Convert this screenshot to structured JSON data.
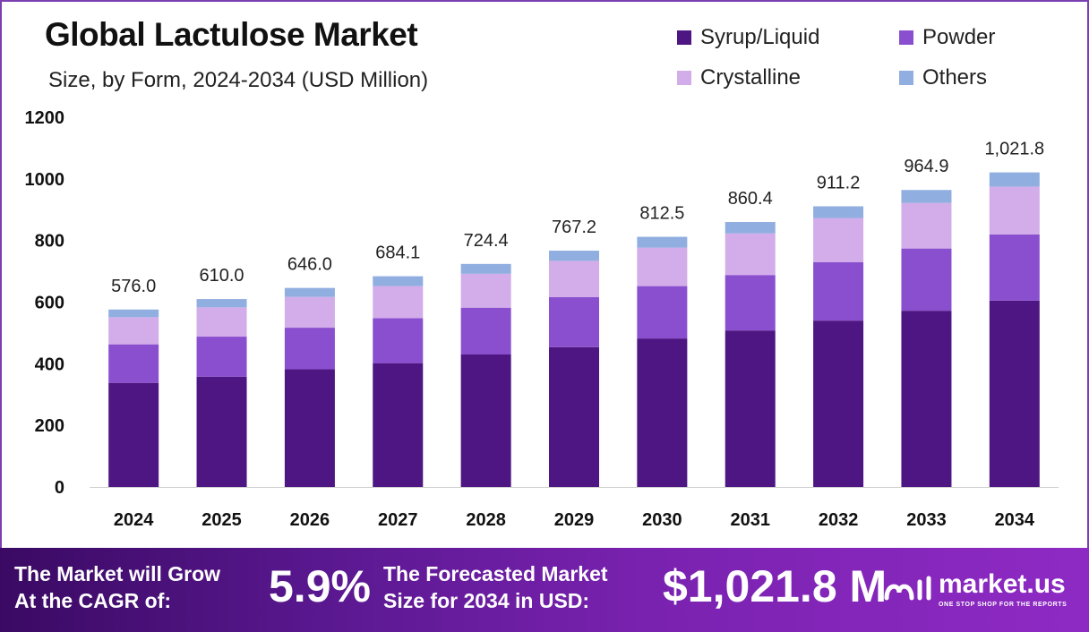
{
  "header": {
    "title": "Global Lactulose Market",
    "subtitle": "Size, by Form, 2024-2034 (USD Million)"
  },
  "legend": [
    {
      "label": "Syrup/Liquid",
      "color": "#4e1682"
    },
    {
      "label": "Powder",
      "color": "#8a4fcf"
    },
    {
      "label": "Crystalline",
      "color": "#d2ade9"
    },
    {
      "label": "Others",
      "color": "#90aee0"
    }
  ],
  "chart_data": {
    "type": "bar",
    "stacked": true,
    "categories": [
      "2024",
      "2025",
      "2026",
      "2027",
      "2028",
      "2029",
      "2030",
      "2031",
      "2032",
      "2033",
      "2034"
    ],
    "series": [
      {
        "name": "Syrup/Liquid",
        "color": "#4e1682",
        "values": [
          338,
          358,
          382,
          402,
          430,
          454,
          482,
          508,
          540,
          572,
          605
        ]
      },
      {
        "name": "Powder",
        "color": "#8a4fcf",
        "values": [
          125,
          130,
          135,
          146,
          152,
          162,
          170,
          180,
          190,
          202,
          215
        ]
      },
      {
        "name": "Crystalline",
        "color": "#d2ade9",
        "values": [
          88,
          95,
          100,
          104,
          110,
          118,
          125,
          135,
          143,
          148,
          155
        ]
      },
      {
        "name": "Others",
        "color": "#90aee0",
        "values": [
          25,
          27,
          29,
          32,
          32,
          33,
          35,
          37,
          38,
          42,
          46
        ]
      }
    ],
    "totals": [
      "576.0",
      "610.0",
      "646.0",
      "684.1",
      "724.4",
      "767.2",
      "812.5",
      "860.4",
      "911.2",
      "964.9",
      "1,021.8"
    ],
    "yticks": [
      "0",
      "200",
      "400",
      "600",
      "800",
      "1000",
      "1200"
    ],
    "ylim": [
      0,
      1200
    ],
    "legend_position": "top-right"
  },
  "footer": {
    "cagr_label": "The Market will Grow\nAt the CAGR of:",
    "cagr_value": "5.9%",
    "forecast_label": "The Forecasted Market\nSize for 2034 in USD:",
    "forecast_value": "$1,021.8 M",
    "brand": "market.us",
    "tagline": "ONE STOP SHOP FOR THE REPORTS"
  }
}
